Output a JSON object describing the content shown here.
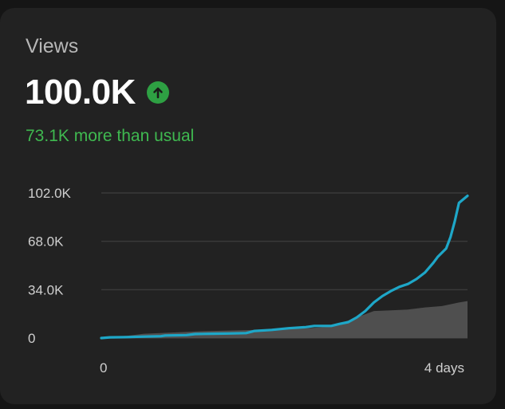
{
  "card": {
    "label": "Views",
    "value": "100.0K",
    "trend_icon": "arrow-up-circle-icon",
    "comparison": "73.1K more than usual"
  },
  "colors": {
    "background": "#222222",
    "views_line": "#1ea7c8",
    "usual_band": "#4f4f4f",
    "positive": "#2ea043"
  },
  "chart_data": {
    "type": "area",
    "x_unit": "days",
    "xlim": [
      0,
      4.3
    ],
    "ylim": [
      0,
      102000
    ],
    "y_ticks": [
      {
        "value": 0,
        "label": "0"
      },
      {
        "value": 34000,
        "label": "34.0K"
      },
      {
        "value": 68000,
        "label": "68.0K"
      },
      {
        "value": 102000,
        "label": "102.0K"
      }
    ],
    "x_ticks": [
      {
        "value": 0,
        "label": "0"
      },
      {
        "value": 4,
        "label": "4 days"
      }
    ],
    "grid": true,
    "series": [
      {
        "kind": "line",
        "x": [
          0,
          0.1,
          0.3,
          0.5,
          0.7,
          0.75,
          1.0,
          1.1,
          1.3,
          1.5,
          1.7,
          1.8,
          2.0,
          2.2,
          2.4,
          2.5,
          2.7,
          2.8,
          2.9,
          3.0,
          3.1,
          3.2,
          3.3,
          3.4,
          3.5,
          3.6,
          3.7,
          3.8,
          3.9,
          3.95,
          4.0,
          4.05,
          4.1,
          4.15,
          4.2,
          4.3
        ],
        "y": [
          0,
          500,
          700,
          1000,
          1300,
          1800,
          2100,
          2800,
          3000,
          3200,
          3500,
          5000,
          5700,
          6900,
          7700,
          8500,
          8500,
          10000,
          11200,
          14500,
          19000,
          25000,
          29500,
          33000,
          36000,
          38000,
          41500,
          46000,
          53000,
          57000,
          60000,
          63000,
          71000,
          82000,
          95000,
          100000
        ]
      },
      {
        "kind": "band",
        "x": [
          0,
          0.3,
          0.5,
          0.8,
          1.2,
          1.6,
          2.0,
          2.4,
          2.7,
          3.0,
          3.2,
          3.4,
          3.6,
          3.8,
          4.0,
          4.2,
          4.3
        ],
        "upper": [
          800,
          1500,
          3000,
          3800,
          4800,
          5400,
          6000,
          6800,
          8000,
          14500,
          19000,
          19500,
          20000,
          21500,
          22500,
          25000,
          26000
        ],
        "lower": [
          0,
          0,
          0,
          0,
          0,
          0,
          0,
          0,
          0,
          0,
          0,
          0,
          0,
          0,
          0,
          0,
          0
        ]
      }
    ]
  }
}
